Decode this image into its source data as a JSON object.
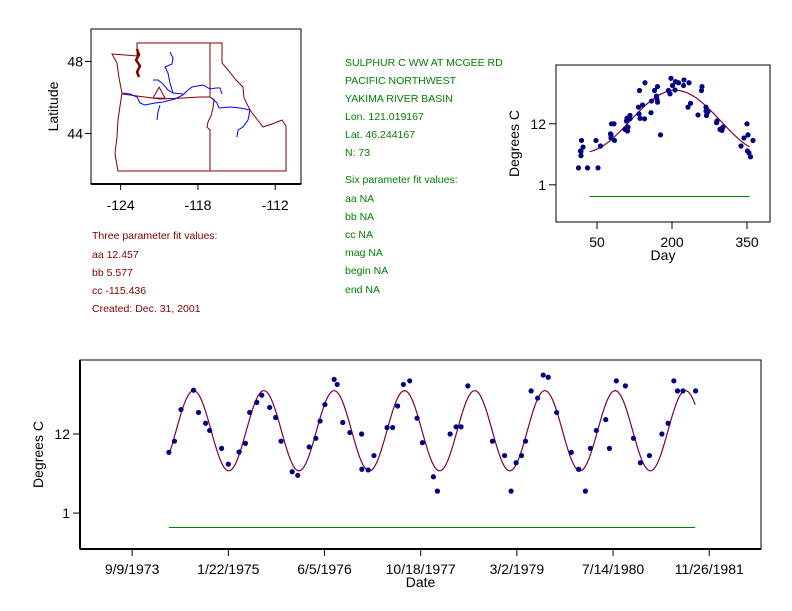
{
  "site": {
    "title": "SULPHUR C WW AT MCGEE RD",
    "region": "PACIFIC NORTHWEST",
    "basin": "YAKIMA RIVER BASIN",
    "lon": "Lon. 121.019167",
    "lat": "Lat. 46.244167",
    "n": "N: 73"
  },
  "three_param": {
    "heading": "Three parameter fit values:",
    "aa": "aa 12.457",
    "bb": "bb 5.577",
    "cc": "cc -115.436",
    "created": "Created:   Dec. 31, 2001"
  },
  "six_param": {
    "heading": "Six parameter fit values:",
    "aa": "aa NA",
    "bb": "bb NA",
    "cc": "cc NA",
    "mag": "mag NA",
    "begin": "begin NA",
    "end": "end NA"
  },
  "colors": {
    "points": "#000080",
    "fit": "#800040",
    "baseline": "#008000",
    "state_lines": "#800000",
    "rivers": "#0000ff",
    "text_site": "#008000",
    "text_fit": "#800000"
  },
  "chart_data": [
    {
      "type": "map",
      "ylabel": "Latitude",
      "xticks": [
        -124,
        -118,
        -112
      ],
      "yticks": [
        48,
        44
      ],
      "xlim": [
        -126.3,
        -110.0
      ],
      "ylim": [
        41.2,
        49.8
      ],
      "site_marker": {
        "shape": "triangle",
        "lon": -121.019167,
        "lat": 46.244167
      }
    },
    {
      "type": "scatter",
      "xlabel": "Day",
      "ylabel": "Degrees C",
      "xticks": [
        50,
        200,
        350
      ],
      "yticks": [
        1,
        12
      ],
      "xlim": [
        -32,
        396
      ],
      "ylim": [
        -5.7,
        22.6
      ],
      "fit": {
        "aa": 12.457,
        "bb": 5.577,
        "cc": -115.436,
        "xrange": [
          35,
          355
        ]
      },
      "baseline": {
        "y": -1.1,
        "xrange": [
          35,
          355
        ]
      }
    },
    {
      "type": "scatter",
      "xlabel": "Date",
      "ylabel": "Degrees C",
      "xticks": [
        "9/9/1973",
        "1/22/1975",
        "6/5/1976",
        "10/18/1977",
        "3/2/1979",
        "7/14/1980",
        "11/26/1981"
      ],
      "xtick_dates": [
        "1973-09-09",
        "1975-01-22",
        "1976-06-05",
        "1977-10-18",
        "1979-03-02",
        "1980-07-14",
        "1981-11-26"
      ],
      "yticks": [
        1,
        12
      ],
      "xlim": [
        "1972-12-12",
        "1982-08-22"
      ],
      "ylim": [
        -4.0,
        22.3
      ],
      "fit": {
        "aa": 12.457,
        "bb": 5.577,
        "cc": -115.436
      },
      "baseline": {
        "y": -1.0
      },
      "points": [
        [
          "1974-03-19",
          9.45
        ],
        [
          "1974-04-17",
          11.0
        ],
        [
          "1974-05-21",
          15.4
        ],
        [
          "1974-07-25",
          18.1
        ],
        [
          "1974-08-20",
          15.0
        ],
        [
          "1974-09-26",
          13.5
        ],
        [
          "1974-10-17",
          12.5
        ],
        [
          "1974-12-18",
          10.0
        ],
        [
          "1975-01-22",
          7.8
        ],
        [
          "1975-03-19",
          9.5
        ],
        [
          "1975-04-21",
          10.7
        ],
        [
          "1975-05-13",
          15.0
        ],
        [
          "1975-06-19",
          16.4
        ],
        [
          "1975-07-15",
          17.4
        ],
        [
          "1975-08-25",
          15.7
        ],
        [
          "1975-09-25",
          14.3
        ],
        [
          "1975-10-23",
          11.0
        ],
        [
          "1975-12-20",
          6.75
        ],
        [
          "1976-01-18",
          6.25
        ],
        [
          "1976-03-17",
          10.2
        ],
        [
          "1976-04-21",
          11.4
        ],
        [
          "1976-05-13",
          13.8
        ],
        [
          "1976-06-07",
          16.1
        ],
        [
          "1976-07-25",
          19.6
        ],
        [
          "1976-08-10",
          18.9
        ],
        [
          "1976-09-08",
          13.6
        ],
        [
          "1976-10-15",
          12.2
        ],
        [
          "1976-12-15",
          12.0
        ],
        [
          "1976-12-16",
          7.1
        ],
        [
          "1977-01-18",
          7.0
        ],
        [
          "1977-02-17",
          9.0
        ],
        [
          "1977-04-26",
          12.9
        ],
        [
          "1977-05-25",
          12.9
        ],
        [
          "1977-06-20",
          15.9
        ],
        [
          "1977-07-20",
          18.9
        ],
        [
          "1977-08-22",
          19.4
        ],
        [
          "1977-09-29",
          14.2
        ],
        [
          "1977-10-27",
          10.8
        ],
        [
          "1977-12-23",
          6.05
        ],
        [
          "1978-01-13",
          4.05
        ],
        [
          "1978-03-20",
          12.0
        ],
        [
          "1978-04-20",
          13.0
        ],
        [
          "1978-05-16",
          13.0
        ],
        [
          "1978-06-20",
          18.7
        ],
        [
          "1978-10-26",
          11.0
        ],
        [
          "1978-12-28",
          9.0
        ],
        [
          "1979-01-31",
          4.05
        ],
        [
          "1979-02-26",
          8.0
        ],
        [
          "1979-03-26",
          9.0
        ],
        [
          "1979-04-16",
          11.0
        ],
        [
          "1979-05-15",
          18.0
        ],
        [
          "1979-06-18",
          17.0
        ],
        [
          "1979-07-17",
          20.2
        ],
        [
          "1979-08-12",
          19.9
        ],
        [
          "1979-09-25",
          15.0
        ],
        [
          "1979-12-10",
          9.45
        ],
        [
          "1980-01-17",
          7.1
        ],
        [
          "1980-02-21",
          4.05
        ],
        [
          "1980-03-18",
          10.0
        ],
        [
          "1980-04-18",
          12.5
        ],
        [
          "1980-06-06",
          14.0
        ],
        [
          "1980-06-25",
          10.0
        ],
        [
          "1980-07-31",
          19.4
        ],
        [
          "1980-09-16",
          18.7
        ],
        [
          "1980-10-28",
          11.4
        ],
        [
          "1980-12-03",
          8.0
        ],
        [
          "1981-01-19",
          9.0
        ],
        [
          "1981-03-25",
          12.0
        ],
        [
          "1981-04-26",
          13.5
        ],
        [
          "1981-05-26",
          19.4
        ],
        [
          "1981-06-14",
          18.0
        ],
        [
          "1981-07-12",
          18.0
        ],
        [
          "1981-09-16",
          18.0
        ]
      ]
    }
  ]
}
